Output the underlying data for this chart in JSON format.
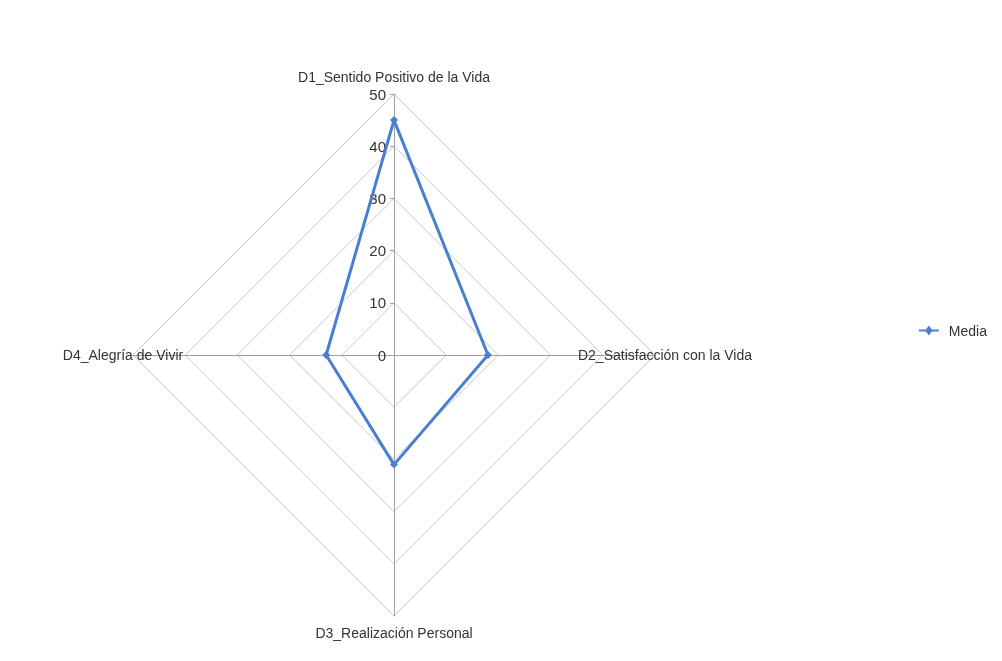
{
  "chart_data": {
    "type": "radar",
    "categories": [
      "D1_Sentido Positivo de la Vida",
      "D2_Satisfacción con la Vida",
      "D3_Realización Personal",
      "D4_Alegría de Vivir"
    ],
    "series": [
      {
        "name": "Media",
        "color": "#4a7fd0",
        "values": [
          45,
          18,
          21,
          13
        ]
      }
    ],
    "ylim": [
      0,
      50
    ],
    "yticks": [
      0,
      10,
      20,
      30,
      40,
      50
    ],
    "grid": true,
    "legend": "right",
    "marker": "diamond",
    "line_style": "solid"
  }
}
